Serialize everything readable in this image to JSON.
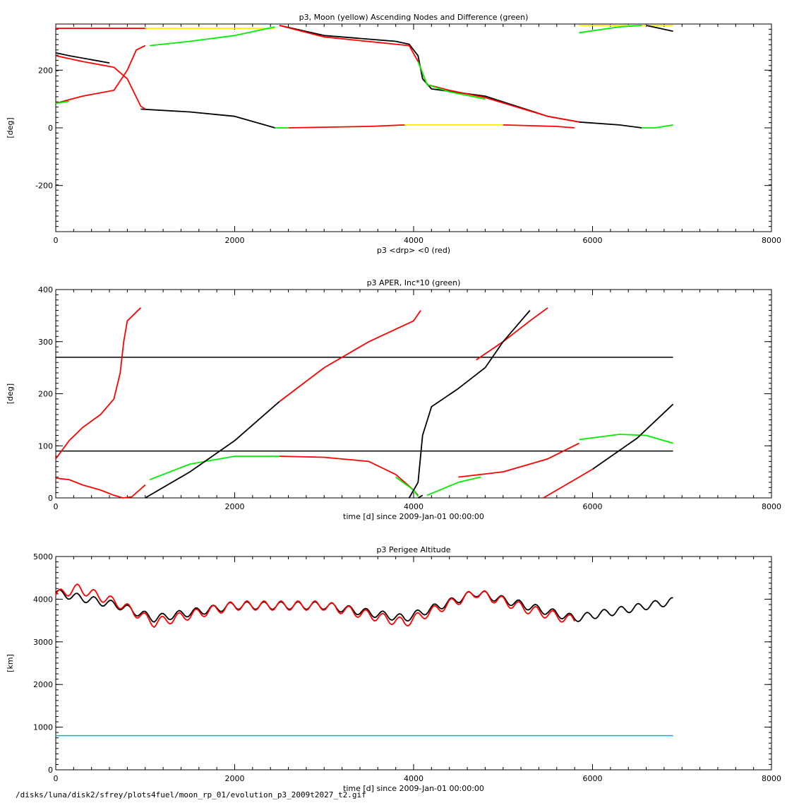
{
  "footer": "/disks/luna/disk2/sfrey/plots4fuel/moon_rp_01/evolution_p3_2009t2027_t2.gif",
  "colors": {
    "axis": "#000000",
    "black": "#000000",
    "red": "#ff0000",
    "green": "#00ee00",
    "yellow": "#ffee00",
    "cyan": "#00b0f0"
  },
  "chart_data": [
    {
      "type": "line",
      "title": "p3, Moon (yellow) Ascending Nodes and Difference (green)",
      "xlabel": "p3 <drp> <0 (red)",
      "ylabel": "[deg]",
      "xlim": [
        0,
        8000
      ],
      "ylim": [
        -360,
        360
      ],
      "xticks": [
        0,
        2000,
        4000,
        6000,
        8000
      ],
      "yticks": [
        -200,
        0,
        200
      ],
      "series": [
        {
          "color": "yellow",
          "segments": [
            [
              [
                0,
                345
              ],
              [
                2450,
                345
              ]
            ],
            [
              [
                0,
                0
              ],
              [
                0,
                0
              ]
            ],
            [
              [
                3900,
                10
              ],
              [
                5000,
                10
              ]
            ],
            [
              [
                5850,
                355
              ],
              [
                6900,
                355
              ]
            ]
          ]
        },
        {
          "color": "black",
          "segments": [
            [
              [
                0,
                260
              ],
              [
                150,
                250
              ],
              [
                600,
                225
              ]
            ],
            [
              [
                950,
                65
              ],
              [
                1500,
                55
              ],
              [
                2000,
                40
              ],
              [
                2450,
                0
              ]
            ],
            [
              [
                2500,
                355
              ],
              [
                3000,
                320
              ],
              [
                3800,
                300
              ],
              [
                3950,
                290
              ],
              [
                4050,
                250
              ],
              [
                4100,
                170
              ],
              [
                4200,
                135
              ],
              [
                4800,
                110
              ],
              [
                5500,
                40
              ],
              [
                5850,
                20
              ]
            ],
            [
              [
                5850,
                20
              ],
              [
                6300,
                10
              ],
              [
                6550,
                0
              ]
            ],
            [
              [
                6600,
                355
              ],
              [
                6900,
                335
              ]
            ]
          ]
        },
        {
          "color": "red",
          "segments": [
            [
              [
                0,
                345
              ],
              [
                1000,
                345
              ]
            ],
            [
              [
                2500,
                355
              ],
              [
                3000,
                315
              ],
              [
                3800,
                290
              ],
              [
                3950,
                285
              ],
              [
                4050,
                230
              ],
              [
                4150,
                150
              ],
              [
                4400,
                130
              ],
              [
                4800,
                105
              ],
              [
                5500,
                40
              ],
              [
                5850,
                20
              ]
            ],
            [
              [
                2600,
                0
              ],
              [
                3500,
                5
              ],
              [
                3900,
                10
              ]
            ],
            [
              [
                5000,
                10
              ],
              [
                5600,
                5
              ],
              [
                5800,
                0
              ]
            ],
            [
              [
                0,
                250
              ],
              [
                300,
                230
              ],
              [
                650,
                210
              ],
              [
                800,
                170
              ],
              [
                950,
                75
              ],
              [
                1000,
                65
              ]
            ],
            [
              [
                0,
                85
              ],
              [
                300,
                110
              ],
              [
                650,
                130
              ],
              [
                800,
                200
              ],
              [
                900,
                270
              ],
              [
                1000,
                285
              ]
            ]
          ]
        },
        {
          "color": "green",
          "segments": [
            [
              [
                0,
                85
              ],
              [
                150,
                92
              ]
            ],
            [
              [
                1050,
                285
              ],
              [
                1500,
                300
              ],
              [
                2000,
                320
              ],
              [
                2450,
                350
              ]
            ],
            [
              [
                4050,
                230
              ],
              [
                4150,
                150
              ],
              [
                4400,
                125
              ],
              [
                4800,
                100
              ]
            ],
            [
              [
                2450,
                0
              ],
              [
                2600,
                0
              ]
            ],
            [
              [
                5850,
                330
              ],
              [
                6300,
                350
              ],
              [
                6550,
                355
              ]
            ],
            [
              [
                6550,
                0
              ],
              [
                6700,
                0
              ],
              [
                6900,
                10
              ]
            ]
          ]
        }
      ]
    },
    {
      "type": "line",
      "title": "p3 APER, Inc*10 (green)",
      "xlabel": "time [d] since 2009-Jan-01 00:00:00",
      "ylabel": "[deg]",
      "xlim": [
        0,
        8000
      ],
      "ylim": [
        0,
        400
      ],
      "xticks": [
        0,
        2000,
        4000,
        6000,
        8000
      ],
      "yticks": [
        0,
        100,
        200,
        300,
        400
      ],
      "hlines": [
        {
          "y": 90,
          "color": "black"
        },
        {
          "y": 270,
          "color": "black"
        }
      ],
      "series": [
        {
          "color": "red",
          "segments": [
            [
              [
                0,
                75
              ],
              [
                150,
                110
              ],
              [
                300,
                135
              ],
              [
                500,
                160
              ],
              [
                650,
                190
              ],
              [
                720,
                240
              ],
              [
                760,
                300
              ],
              [
                800,
                340
              ],
              [
                950,
                365
              ]
            ],
            [
              [
                0,
                38
              ],
              [
                150,
                35
              ],
              [
                300,
                25
              ],
              [
                500,
                15
              ],
              [
                650,
                5
              ],
              [
                750,
                0
              ],
              [
                850,
                2
              ],
              [
                1000,
                25
              ]
            ],
            [
              [
                2500,
                185
              ],
              [
                3000,
                250
              ],
              [
                3500,
                300
              ],
              [
                4000,
                340
              ],
              [
                4080,
                360
              ]
            ],
            [
              [
                2500,
                80
              ],
              [
                3000,
                78
              ],
              [
                3500,
                70
              ],
              [
                3800,
                45
              ],
              [
                4000,
                15
              ],
              [
                4050,
                5
              ]
            ],
            [
              [
                4500,
                40
              ],
              [
                5000,
                50
              ],
              [
                5500,
                75
              ],
              [
                5850,
                105
              ]
            ],
            [
              [
                4700,
                265
              ],
              [
                5000,
                300
              ],
              [
                5300,
                340
              ],
              [
                5500,
                365
              ]
            ],
            [
              [
                5450,
                0
              ],
              [
                5700,
                25
              ],
              [
                6000,
                55
              ]
            ]
          ]
        },
        {
          "color": "green",
          "segments": [
            [
              [
                1050,
                35
              ],
              [
                1500,
                65
              ],
              [
                2000,
                80
              ],
              [
                2500,
                80
              ]
            ],
            [
              [
                3800,
                40
              ],
              [
                4000,
                15
              ],
              [
                4050,
                3
              ]
            ],
            [
              [
                4150,
                5
              ],
              [
                4500,
                30
              ],
              [
                4750,
                40
              ]
            ],
            [
              [
                5850,
                112
              ],
              [
                6300,
                122
              ],
              [
                6600,
                120
              ],
              [
                6900,
                105
              ]
            ]
          ]
        },
        {
          "color": "black",
          "segments": [
            [
              [
                1000,
                0
              ],
              [
                1500,
                50
              ],
              [
                2000,
                110
              ],
              [
                2500,
                185
              ]
            ],
            [
              [
                3950,
                0
              ],
              [
                4050,
                30
              ],
              [
                4100,
                120
              ],
              [
                4200,
                175
              ],
              [
                4500,
                210
              ],
              [
                4800,
                250
              ],
              [
                5000,
                300
              ],
              [
                5200,
                340
              ],
              [
                5300,
                360
              ]
            ],
            [
              [
                4050,
                0
              ],
              [
                4100,
                5
              ]
            ],
            [
              [
                6000,
                55
              ],
              [
                6500,
                115
              ],
              [
                6900,
                180
              ]
            ]
          ]
        }
      ]
    },
    {
      "type": "line",
      "title": "p3 Perigee Altitude",
      "xlabel": "time [d] since 2009-Jan-01 00:00:00",
      "ylabel": "[km]",
      "xlim": [
        0,
        8000
      ],
      "ylim": [
        0,
        5000
      ],
      "xticks": [
        0,
        2000,
        4000,
        6000,
        8000
      ],
      "yticks": [
        0,
        1000,
        2000,
        3000,
        4000,
        5000
      ],
      "hlines": [
        {
          "y": 800,
          "color": "cyan"
        }
      ],
      "series": [
        {
          "color": "black",
          "wave": {
            "x0": 0,
            "x1": 6900,
            "step": 20,
            "amp": 90,
            "period": 190,
            "base": [
              [
                0,
                4150
              ],
              [
                700,
                3850
              ],
              [
                1100,
                3550
              ],
              [
                2000,
                3850
              ],
              [
                3000,
                3850
              ],
              [
                3900,
                3550
              ],
              [
                4700,
                4150
              ],
              [
                5800,
                3550
              ],
              [
                6900,
                3950
              ]
            ]
          }
        },
        {
          "color": "red",
          "wave": {
            "x0": 0,
            "x1": 5800,
            "step": 20,
            "amp": 110,
            "period": 190,
            "base": [
              [
                0,
                4100
              ],
              [
                250,
                4250
              ],
              [
                700,
                3900
              ],
              [
                1100,
                3450
              ],
              [
                2000,
                3850
              ],
              [
                3000,
                3850
              ],
              [
                3900,
                3450
              ],
              [
                4700,
                4150
              ],
              [
                5300,
                3750
              ],
              [
                5800,
                3500
              ]
            ]
          }
        }
      ]
    }
  ]
}
